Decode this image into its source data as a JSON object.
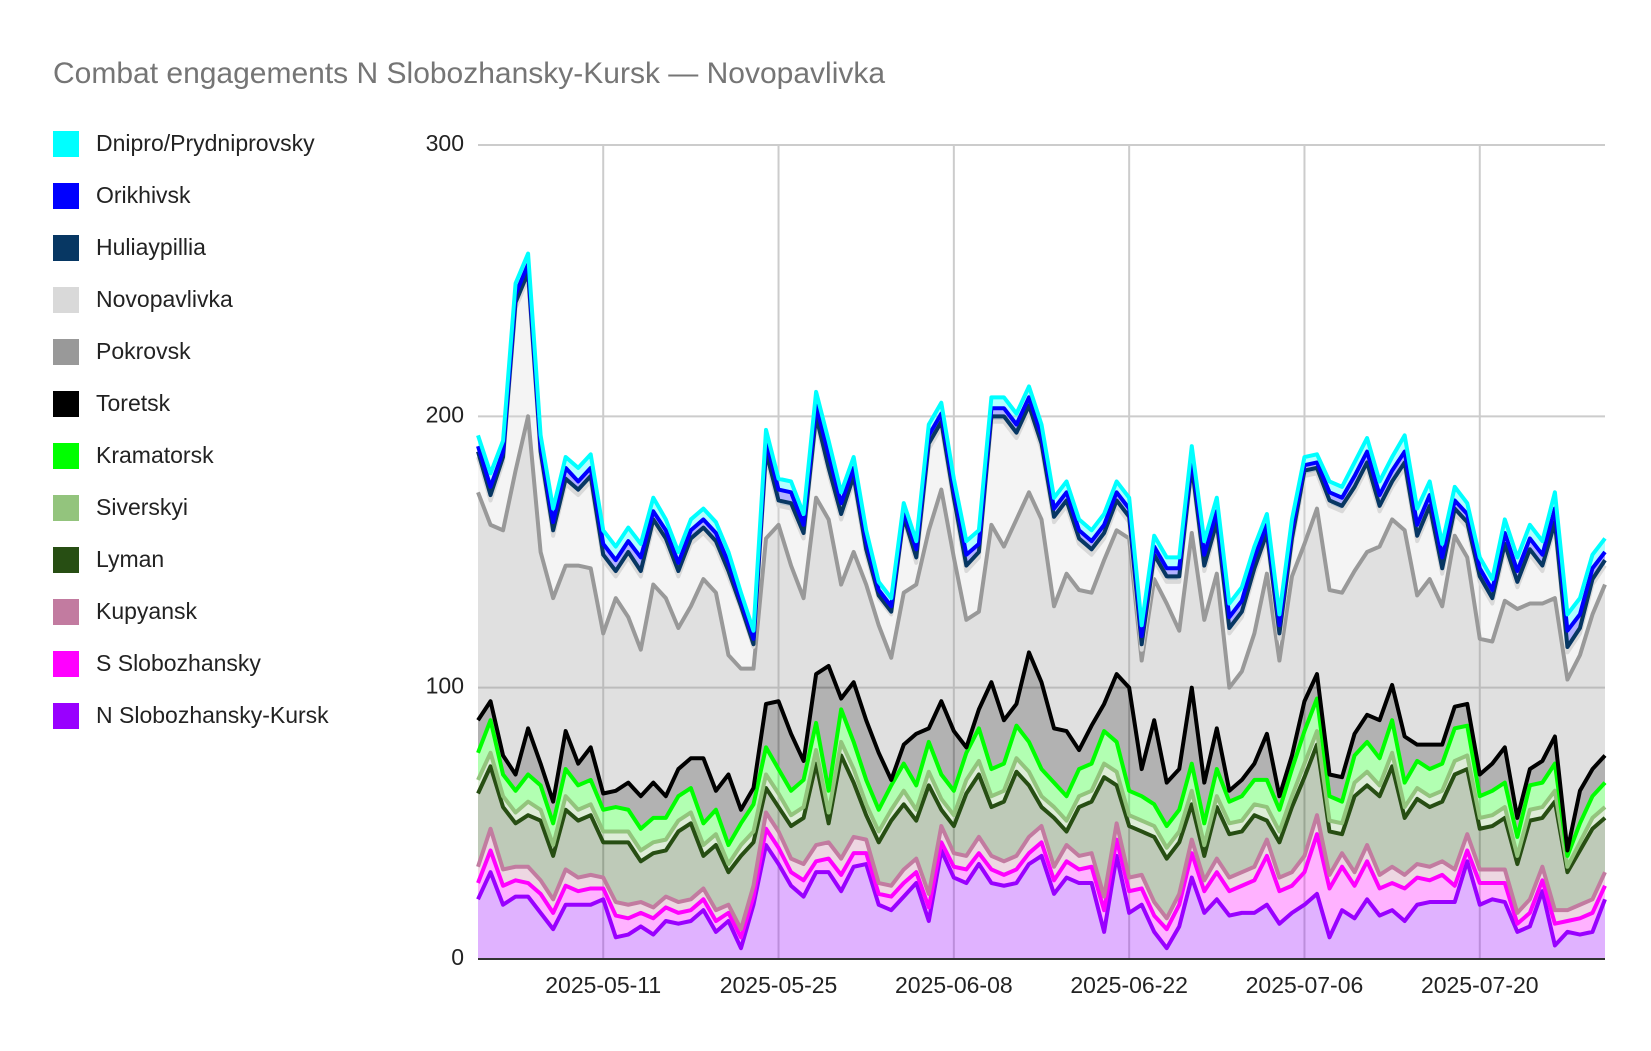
{
  "chart_data": {
    "type": "stacked_area",
    "title": "Combat engagements N Slobozhansky-Kursk — Novopavlivka",
    "x": [
      "2025-05-01",
      "2025-05-02",
      "2025-05-03",
      "2025-05-04",
      "2025-05-05",
      "2025-05-06",
      "2025-05-07",
      "2025-05-08",
      "2025-05-09",
      "2025-05-10",
      "2025-05-11",
      "2025-05-12",
      "2025-05-13",
      "2025-05-14",
      "2025-05-15",
      "2025-05-16",
      "2025-05-17",
      "2025-05-18",
      "2025-05-19",
      "2025-05-20",
      "2025-05-21",
      "2025-05-22",
      "2025-05-23",
      "2025-05-24",
      "2025-05-25",
      "2025-05-26",
      "2025-05-27",
      "2025-05-28",
      "2025-05-29",
      "2025-05-30",
      "2025-05-31",
      "2025-06-01",
      "2025-06-02",
      "2025-06-03",
      "2025-06-04",
      "2025-06-05",
      "2025-06-06",
      "2025-06-07",
      "2025-06-08",
      "2025-06-09",
      "2025-06-10",
      "2025-06-11",
      "2025-06-12",
      "2025-06-13",
      "2025-06-14",
      "2025-06-15",
      "2025-06-16",
      "2025-06-17",
      "2025-06-18",
      "2025-06-19",
      "2025-06-20",
      "2025-06-21",
      "2025-06-22",
      "2025-06-23",
      "2025-06-24",
      "2025-06-25",
      "2025-06-26",
      "2025-06-27",
      "2025-06-28",
      "2025-06-29",
      "2025-06-30",
      "2025-07-01",
      "2025-07-02",
      "2025-07-03",
      "2025-07-04",
      "2025-07-05",
      "2025-07-06",
      "2025-07-07",
      "2025-07-08",
      "2025-07-09",
      "2025-07-10",
      "2025-07-11",
      "2025-07-12",
      "2025-07-13",
      "2025-07-14",
      "2025-07-15",
      "2025-07-16",
      "2025-07-17",
      "2025-07-18",
      "2025-07-19",
      "2025-07-20",
      "2025-07-21",
      "2025-07-22",
      "2025-07-23",
      "2025-07-24",
      "2025-07-25",
      "2025-07-26",
      "2025-07-27",
      "2025-07-28",
      "2025-07-29",
      "2025-07-30"
    ],
    "xticks": [
      "2025-05-11",
      "2025-05-25",
      "2025-06-08",
      "2025-06-22",
      "2025-07-06",
      "2025-07-20"
    ],
    "ylim": [
      0,
      300
    ],
    "yticks": [
      0,
      100,
      200,
      300
    ],
    "grid": true,
    "legend": "left",
    "series": [
      {
        "name": "Dnipro/Prydniprovsky",
        "color": "#00ffff",
        "values": [
          4,
          5,
          4,
          4,
          4,
          4,
          5,
          4,
          5,
          5,
          5,
          5,
          5,
          5,
          5,
          4,
          4,
          4,
          4,
          4,
          4,
          3,
          3,
          4,
          4,
          4,
          4,
          5,
          5,
          4,
          4,
          4,
          3,
          3,
          3,
          3,
          4,
          4,
          4,
          5,
          5,
          4,
          4,
          4,
          4,
          4,
          4,
          4,
          4,
          4,
          4,
          4,
          4,
          4,
          4,
          4,
          4,
          4,
          5,
          5,
          5,
          5,
          4,
          4,
          4,
          4,
          3,
          3,
          4,
          4,
          5,
          5,
          5,
          5,
          6,
          6,
          5,
          5,
          5,
          4,
          4,
          4,
          5,
          5,
          5,
          5,
          6,
          6,
          6,
          5,
          5
        ]
      },
      {
        "name": "Orikhivsk",
        "color": "#0000ff",
        "values": [
          2,
          3,
          2,
          3,
          3,
          2,
          3,
          4,
          3,
          3,
          4,
          4,
          4,
          5,
          3,
          3,
          3,
          3,
          3,
          3,
          3,
          2,
          2,
          4,
          4,
          4,
          3,
          4,
          5,
          4,
          3,
          3,
          2,
          2,
          2,
          3,
          3,
          3,
          3,
          4,
          3,
          3,
          3,
          3,
          3,
          3,
          3,
          3,
          3,
          3,
          3,
          3,
          3,
          3,
          3,
          3,
          3,
          3,
          4,
          4,
          4,
          4,
          4,
          3,
          3,
          3,
          2,
          2,
          3,
          3,
          4,
          4,
          4,
          4,
          4,
          4,
          4,
          4,
          3,
          3,
          3,
          3,
          4,
          4,
          4,
          4,
          5,
          6,
          5,
          4,
          3
        ]
      },
      {
        "name": "Huliaypillia",
        "color": "#073763",
        "values": [
          2,
          2,
          2,
          2,
          2,
          2,
          2,
          2,
          2,
          2,
          2,
          2,
          2,
          2,
          2,
          2,
          2,
          2,
          2,
          2,
          2,
          1,
          1,
          2,
          2,
          2,
          2,
          2,
          2,
          2,
          2,
          2,
          1,
          1,
          1,
          2,
          2,
          2,
          2,
          2,
          2,
          2,
          2,
          2,
          2,
          2,
          2,
          2,
          2,
          2,
          2,
          2,
          2,
          2,
          2,
          2,
          2,
          2,
          2,
          2,
          2,
          2,
          2,
          2,
          2,
          2,
          2,
          2,
          2,
          2,
          2,
          2,
          2,
          2,
          2,
          2,
          2,
          2,
          2,
          2,
          2,
          2,
          2,
          2,
          2,
          2,
          2,
          2,
          2,
          2,
          2
        ]
      },
      {
        "name": "Novopavlivka",
        "color": "#d9d9d9",
        "values": [
          13,
          9,
          25,
          60,
          51,
          35,
          23,
          30,
          26,
          32,
          27,
          8,
          22,
          27,
          22,
          20,
          19,
          23,
          17,
          17,
          29,
          22,
          8,
          30,
          7,
          21,
          22,
          28,
          17,
          24,
          26,
          11,
          10,
          16,
          27,
          8,
          30,
          23,
          20,
          18,
          20,
          38,
          46,
          30,
          30,
          26,
          31,
          25,
          17,
          14,
          8,
          9,
          6,
          4,
          7,
          8,
          18,
          23,
          18,
          17,
          20,
          20,
          22,
          13,
          8,
          12,
          25,
          13,
          31,
          30,
          29,
          31,
          13,
          12,
          23,
          20,
          25,
          12,
          8,
          11,
          21,
          14,
          19,
          8,
          18,
          12,
          26,
          10,
          8,
          11,
          7
        ]
      },
      {
        "name": "Pokrovsk",
        "color": "#999999",
        "values": [
          84,
          65,
          83,
          112,
          115,
          78,
          75,
          61,
          73,
          66,
          59,
          71,
          61,
          54,
          73,
          73,
          52,
          56,
          66,
          73,
          44,
          52,
          44,
          61,
          65,
          62,
          60,
          65,
          54,
          42,
          48,
          50,
          47,
          45,
          56,
          55,
          73,
          78,
          64,
          47,
          36,
          58,
          64,
          68,
          59,
          60,
          45,
          58,
          59,
          49,
          53,
          53,
          55,
          40,
          52,
          66,
          51,
          57,
          60,
          57,
          38,
          40,
          48,
          59,
          50,
          66,
          58,
          61,
          68,
          68,
          60,
          60,
          64,
          61,
          76,
          55,
          61,
          51,
          63,
          54,
          50,
          45,
          54,
          77,
          61,
          58,
          51,
          63,
          50,
          57,
          63
        ]
      },
      {
        "name": "Toretsk",
        "color": "#000000",
        "values": [
          12,
          7,
          7,
          6,
          17,
          8,
          8,
          14,
          8,
          12,
          6,
          6,
          10,
          12,
          13,
          8,
          10,
          11,
          24,
          7,
          26,
          5,
          6,
          16,
          25,
          21,
          7,
          18,
          46,
          4,
          22,
          22,
          21,
          2,
          7,
          19,
          5,
          27,
          22,
          2,
          7,
          32,
          16,
          8,
          33,
          32,
          20,
          24,
          7,
          14,
          10,
          25,
          38,
          10,
          31,
          16,
          15,
          28,
          15,
          15,
          4,
          6,
          6,
          17,
          5,
          5,
          11,
          9,
          8,
          9,
          8,
          10,
          14,
          13,
          17,
          6,
          9,
          7,
          8,
          8,
          8,
          10,
          13,
          7,
          6,
          8,
          10,
          2,
          12,
          10,
          10
        ]
      },
      {
        "name": "Kramatorsk",
        "color": "#00ff00",
        "values": [
          10,
          12,
          8,
          8,
          10,
          9,
          8,
          10,
          9,
          9,
          8,
          9,
          8,
          8,
          9,
          8,
          9,
          9,
          8,
          9,
          7,
          8,
          10,
          10,
          9,
          9,
          10,
          10,
          8,
          12,
          10,
          9,
          8,
          9,
          10,
          9,
          11,
          9,
          9,
          10,
          12,
          10,
          10,
          12,
          11,
          10,
          9,
          9,
          10,
          10,
          12,
          11,
          9,
          9,
          8,
          8,
          8,
          10,
          8,
          10,
          8,
          9,
          9,
          10,
          8,
          10,
          12,
          12,
          9,
          8,
          10,
          11,
          10,
          12,
          9,
          10,
          10,
          10,
          12,
          11,
          8,
          9,
          9,
          7,
          9,
          9,
          10,
          4,
          7,
          8,
          9
        ]
      },
      {
        "name": "Siverskyi",
        "color": "#93c47d",
        "values": [
          5,
          5,
          4,
          4,
          5,
          4,
          4,
          5,
          4,
          4,
          4,
          4,
          4,
          4,
          4,
          4,
          4,
          4,
          4,
          4,
          3,
          4,
          4,
          5,
          5,
          4,
          4,
          5,
          4,
          5,
          5,
          4,
          4,
          4,
          5,
          4,
          5,
          4,
          4,
          5,
          5,
          4,
          4,
          5,
          5,
          4,
          4,
          4,
          4,
          4,
          5,
          5,
          4,
          4,
          4,
          4,
          4,
          5,
          4,
          4,
          4,
          4,
          4,
          5,
          4,
          4,
          5,
          5,
          4,
          4,
          5,
          5,
          4,
          5,
          4,
          4,
          4,
          4,
          5,
          5,
          4,
          4,
          4,
          3,
          4,
          4,
          4,
          2,
          3,
          4,
          4
        ]
      },
      {
        "name": "Lyman",
        "color": "#274e13",
        "values": [
          27,
          23,
          23,
          16,
          19,
          22,
          16,
          22,
          21,
          22,
          13,
          22,
          23,
          15,
          20,
          17,
          26,
          28,
          12,
          24,
          12,
          27,
          16,
          9,
          9,
          12,
          17,
          30,
          7,
          38,
          20,
          9,
          15,
          24,
          24,
          14,
          40,
          6,
          10,
          23,
          23,
          18,
          22,
          31,
          19,
          7,
          18,
          5,
          18,
          19,
          44,
          14,
          19,
          16,
          24,
          22,
          19,
          13,
          9,
          19,
          16,
          15,
          19,
          7,
          13,
          24,
          29,
          26,
          16,
          7,
          28,
          22,
          29,
          37,
          21,
          24,
          22,
          22,
          35,
          24,
          15,
          16,
          19,
          18,
          29,
          18,
          40,
          14,
          20,
          26,
          20
        ]
      },
      {
        "name": "Kupyansk",
        "color": "#c27ba0",
        "values": [
          6,
          8,
          6,
          5,
          6,
          5,
          5,
          6,
          5,
          5,
          4,
          5,
          5,
          4,
          4,
          4,
          4,
          4,
          4,
          4,
          3,
          3,
          4,
          6,
          6,
          5,
          6,
          6,
          6,
          6,
          6,
          5,
          4,
          4,
          5,
          5,
          5,
          6,
          5,
          5,
          6,
          5,
          5,
          5,
          6,
          6,
          5,
          6,
          5,
          5,
          5,
          6,
          5,
          5,
          5,
          4,
          4,
          5,
          4,
          5,
          5,
          5,
          5,
          6,
          5,
          5,
          6,
          7,
          5,
          5,
          5,
          6,
          5,
          6,
          5,
          5,
          5,
          5,
          6,
          6,
          5,
          5,
          5,
          4,
          5,
          5,
          5,
          4,
          5,
          5,
          5
        ]
      },
      {
        "name": "S Slobozhansky",
        "color": "#ff00ff",
        "values": [
          6,
          8,
          7,
          6,
          5,
          7,
          6,
          7,
          5,
          6,
          4,
          8,
          6,
          5,
          6,
          5,
          4,
          4,
          4,
          4,
          3,
          4,
          3,
          6,
          6,
          5,
          6,
          4,
          5,
          6,
          5,
          4,
          4,
          5,
          5,
          4,
          5,
          3,
          4,
          5,
          4,
          5,
          4,
          5,
          4,
          5,
          5,
          6,
          5,
          6,
          8,
          6,
          8,
          6,
          6,
          7,
          8,
          9,
          8,
          10,
          9,
          10,
          12,
          18,
          12,
          10,
          12,
          22,
          18,
          16,
          12,
          14,
          10,
          10,
          12,
          10,
          8,
          10,
          6,
          4,
          8,
          6,
          7,
          3,
          5,
          4,
          8,
          4,
          6,
          7,
          5
        ]
      },
      {
        "name": "N Slobozhansky-Kursk",
        "color": "#9900ff",
        "values": [
          22,
          32,
          20,
          23,
          23,
          17,
          11,
          20,
          20,
          20,
          22,
          8,
          9,
          12,
          9,
          14,
          13,
          14,
          18,
          10,
          14,
          4,
          20,
          42,
          35,
          27,
          23,
          32,
          32,
          25,
          34,
          35,
          20,
          18,
          23,
          28,
          14,
          40,
          30,
          28,
          35,
          28,
          27,
          28,
          35,
          38,
          24,
          30,
          28,
          28,
          10,
          38,
          17,
          20,
          10,
          4,
          12,
          30,
          17,
          22,
          16,
          17,
          17,
          20,
          13,
          17,
          20,
          24,
          8,
          18,
          15,
          22,
          16,
          18,
          14,
          20,
          21,
          21,
          21,
          36,
          20,
          22,
          21,
          10,
          12,
          25,
          5,
          10,
          9,
          10,
          22
        ]
      }
    ]
  }
}
